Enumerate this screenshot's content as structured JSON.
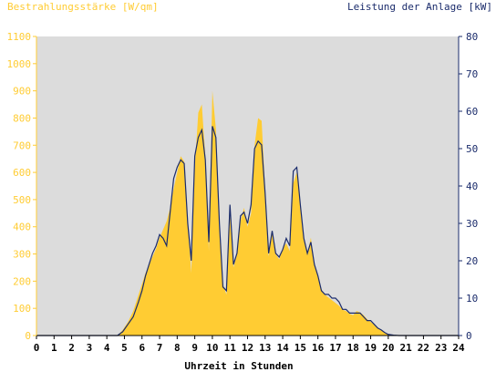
{
  "chart_data": {
    "type": "area",
    "left_axis_label": "Bestrahlungsstärke [W/qm]",
    "right_axis_label": "Leistung der Anlage [kW]",
    "xlabel": "Uhrzeit in Stunden",
    "xlim": [
      0,
      24
    ],
    "ylim_left": [
      0,
      1100
    ],
    "ylim_right": [
      0,
      80
    ],
    "x_ticks": [
      "0",
      "1",
      "2",
      "3",
      "4",
      "5",
      "6",
      "7",
      "8",
      "9",
      "10",
      "11",
      "12",
      "13",
      "14",
      "15",
      "16",
      "17",
      "18",
      "19",
      "20",
      "21",
      "22",
      "23",
      "24"
    ],
    "y_ticks_left": [
      "0",
      "100",
      "200",
      "300",
      "400",
      "500",
      "600",
      "700",
      "800",
      "900",
      "1000",
      "1100"
    ],
    "y_ticks_right": [
      "0",
      "10",
      "20",
      "30",
      "40",
      "50",
      "60",
      "70",
      "80"
    ],
    "grid": false,
    "colors": {
      "irradiance": "#ffcc33",
      "power": "#1a2b6b",
      "plot_background": "#dcdcdc",
      "left_axis_text": "#ffcc33",
      "right_axis_text": "#1a2b6b"
    },
    "series": [
      {
        "axis": "left",
        "x": [
          0,
          4.6,
          4.9,
          5.2,
          5.5,
          5.8,
          6.0,
          6.2,
          6.4,
          6.6,
          6.8,
          7.0,
          7.2,
          7.4,
          7.6,
          7.8,
          8.0,
          8.2,
          8.4,
          8.6,
          8.8,
          9.0,
          9.2,
          9.4,
          9.6,
          9.8,
          10.0,
          10.2,
          10.4,
          10.6,
          10.8,
          11.0,
          11.2,
          11.4,
          11.6,
          11.8,
          12.0,
          12.2,
          12.4,
          12.6,
          12.8,
          13.0,
          13.2,
          13.4,
          13.6,
          13.8,
          14.0,
          14.2,
          14.4,
          14.6,
          14.8,
          15.0,
          15.2,
          15.4,
          15.6,
          15.8,
          16.0,
          16.2,
          16.4,
          16.6,
          16.8,
          17.0,
          17.2,
          17.4,
          17.6,
          17.8,
          18.0,
          18.2,
          18.4,
          18.6,
          18.8,
          19.0,
          19.2,
          19.4,
          19.6,
          19.8,
          20.0,
          20.3,
          20.6,
          21.0,
          24
        ],
        "values": [
          0,
          0,
          20,
          50,
          90,
          150,
          190,
          230,
          260,
          290,
          320,
          360,
          390,
          420,
          470,
          540,
          600,
          660,
          640,
          420,
          230,
          620,
          820,
          850,
          660,
          310,
          900,
          760,
          380,
          190,
          150,
          440,
          250,
          300,
          420,
          470,
          400,
          450,
          700,
          800,
          790,
          540,
          290,
          380,
          300,
          280,
          320,
          340,
          310,
          560,
          600,
          480,
          350,
          300,
          360,
          260,
          220,
          170,
          150,
          140,
          130,
          120,
          110,
          95,
          90,
          80,
          75,
          90,
          85,
          75,
          60,
          50,
          40,
          30,
          20,
          10,
          5,
          2,
          0,
          0,
          0
        ]
      },
      {
        "axis": "right",
        "x": [
          0,
          4.6,
          4.9,
          5.2,
          5.5,
          5.8,
          6.0,
          6.2,
          6.4,
          6.6,
          6.8,
          7.0,
          7.2,
          7.4,
          7.6,
          7.8,
          8.0,
          8.2,
          8.4,
          8.6,
          8.8,
          9.0,
          9.2,
          9.4,
          9.6,
          9.8,
          10.0,
          10.2,
          10.4,
          10.6,
          10.8,
          11.0,
          11.2,
          11.4,
          11.6,
          11.8,
          12.0,
          12.2,
          12.4,
          12.6,
          12.8,
          13.0,
          13.2,
          13.4,
          13.6,
          13.8,
          14.0,
          14.2,
          14.4,
          14.6,
          14.8,
          15.0,
          15.2,
          15.4,
          15.6,
          15.8,
          16.0,
          16.2,
          16.4,
          16.6,
          16.8,
          17.0,
          17.2,
          17.4,
          17.6,
          17.8,
          18.0,
          18.2,
          18.4,
          18.6,
          18.8,
          19.0,
          19.2,
          19.4,
          19.6,
          19.8,
          20.0,
          20.3,
          20.6,
          21.0,
          24
        ],
        "values": [
          0,
          0,
          1,
          3,
          5,
          9,
          12,
          16,
          19,
          22,
          24,
          27,
          26,
          24,
          33,
          42,
          45,
          47,
          46,
          30,
          20,
          48,
          53,
          55,
          47,
          25,
          56,
          53,
          30,
          13,
          12,
          35,
          19,
          22,
          32,
          33,
          30,
          35,
          50,
          52,
          51,
          38,
          22,
          28,
          22,
          21,
          23,
          26,
          24,
          44,
          45,
          35,
          26,
          22,
          25,
          19,
          16,
          12,
          11,
          11,
          10,
          10,
          9,
          7,
          7,
          6,
          6,
          6,
          6,
          5,
          4,
          4,
          3,
          2,
          1.5,
          0.8,
          0.3,
          0.1,
          0,
          0,
          0
        ]
      }
    ]
  }
}
